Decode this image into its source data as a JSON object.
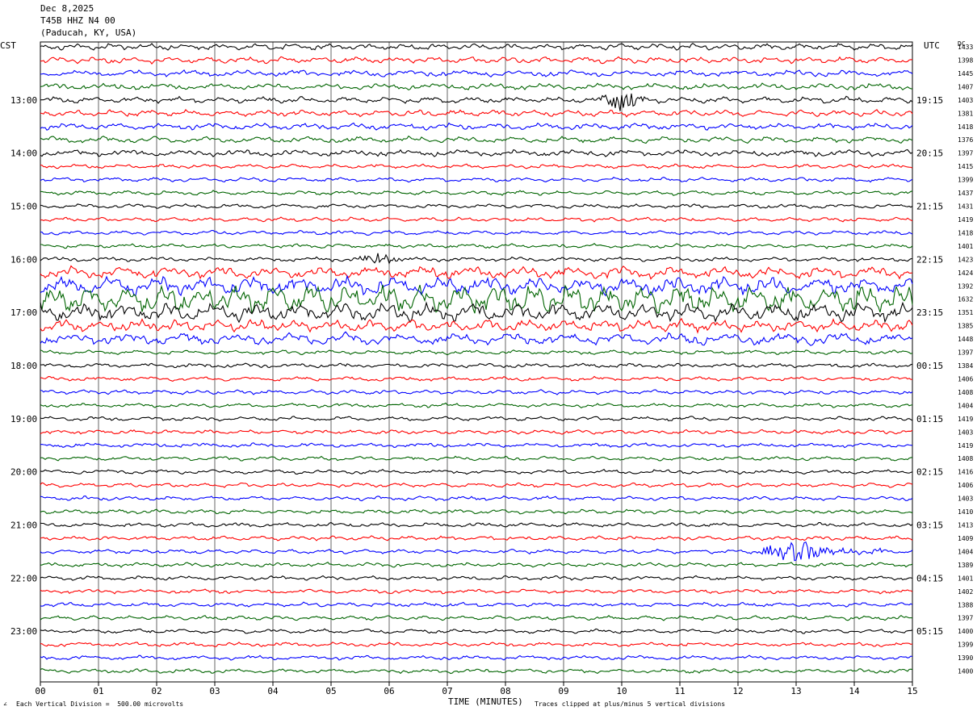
{
  "header": {
    "date": "Dec 8,2025",
    "station": "T45B HHZ N4 00",
    "location": "(Paducah, KY, USA)"
  },
  "left_tz": "CST",
  "right_tz": "UTC",
  "dc_label": "DC",
  "footer": {
    "scale_note": "Each Vertical Division =  500.00 microvolts",
    "xaxis_label": "TIME (MINUTES)",
    "clip_note": "Traces clipped at plus/minus 5 vertical divisions"
  },
  "colors": {
    "black": "#000000",
    "red": "#ff0000",
    "blue": "#0000ff",
    "green": "#006400"
  },
  "chart_data": {
    "type": "line",
    "xlabel": "TIME (MINUTES)",
    "xlim": [
      0,
      15
    ],
    "x_ticks": [
      "00",
      "01",
      "02",
      "03",
      "04",
      "05",
      "06",
      "07",
      "08",
      "09",
      "10",
      "11",
      "12",
      "13",
      "14",
      "15"
    ],
    "trace_minutes": 15,
    "trace_count": 48,
    "color_cycle": [
      "black",
      "red",
      "blue",
      "green"
    ],
    "left_hour_labels": [
      {
        "trace": 4,
        "label": "13:00"
      },
      {
        "trace": 8,
        "label": "14:00"
      },
      {
        "trace": 12,
        "label": "15:00"
      },
      {
        "trace": 16,
        "label": "16:00"
      },
      {
        "trace": 20,
        "label": "17:00"
      },
      {
        "trace": 24,
        "label": "18:00"
      },
      {
        "trace": 28,
        "label": "19:00"
      },
      {
        "trace": 32,
        "label": "20:00"
      },
      {
        "trace": 36,
        "label": "21:00"
      },
      {
        "trace": 40,
        "label": "22:00"
      },
      {
        "trace": 44,
        "label": "23:00"
      }
    ],
    "right_hour_labels": [
      {
        "trace": 4,
        "label": "19:15"
      },
      {
        "trace": 8,
        "label": "20:15"
      },
      {
        "trace": 12,
        "label": "21:15"
      },
      {
        "trace": 16,
        "label": "22:15"
      },
      {
        "trace": 20,
        "label": "23:15"
      },
      {
        "trace": 24,
        "label": "00:15"
      },
      {
        "trace": 28,
        "label": "01:15"
      },
      {
        "trace": 32,
        "label": "02:15"
      },
      {
        "trace": 36,
        "label": "03:15"
      },
      {
        "trace": 40,
        "label": "04:15"
      },
      {
        "trace": 44,
        "label": "05:15"
      }
    ],
    "dc_offsets": [
      "1433",
      "1398",
      "1445",
      "1407",
      "1403",
      "1381",
      "1418",
      "1376",
      "1397",
      "1415",
      "1399",
      "1437",
      "1431",
      "1419",
      "1418",
      "1401",
      "1423",
      "1424",
      "1392",
      "1632",
      "1351",
      "1385",
      "1448",
      "1397",
      "1384",
      "1406",
      "1408",
      "1404",
      "1419",
      "1403",
      "1419",
      "1408",
      "1416",
      "1406",
      "1403",
      "1410",
      "1413",
      "1409",
      "1404",
      "1389",
      "1401",
      "1402",
      "1388",
      "1397",
      "1400",
      "1399",
      "1390",
      "1400"
    ],
    "events": [
      {
        "trace": 4,
        "start_min": 9.6,
        "end_min": 10.9,
        "amplitude": 2.2
      },
      {
        "trace": 16,
        "start_min": 5.5,
        "end_min": 6.5,
        "amplitude": 1.6
      },
      {
        "trace": 38,
        "start_min": 12.4,
        "end_min": 14.6,
        "amplitude": 2.4
      }
    ]
  }
}
